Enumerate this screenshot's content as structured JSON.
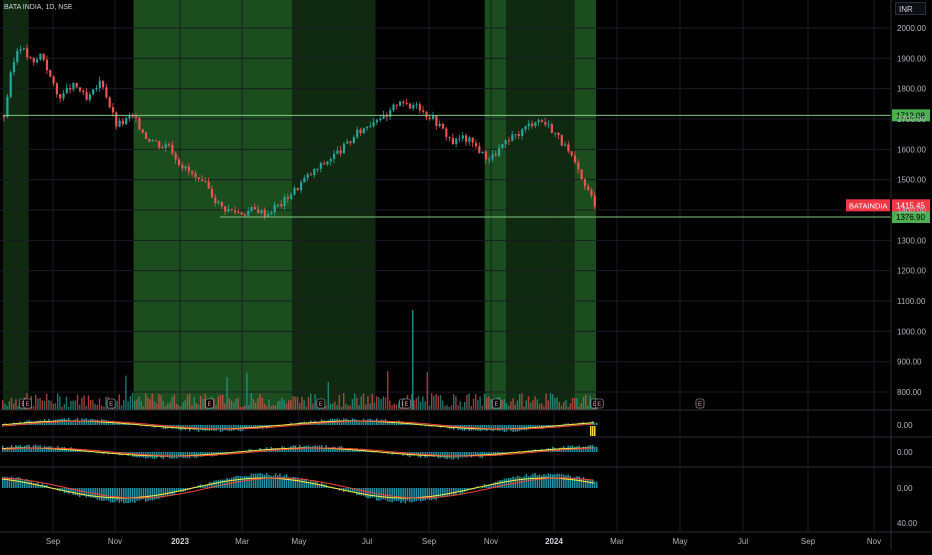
{
  "header": {
    "symbol": "BATA INDIA, 1D, NSE",
    "currency": "INR"
  },
  "chart_data": {
    "type": "candlestick",
    "price_axis": {
      "ticks": [
        "2000.00",
        "1900.00",
        "1800.00",
        "1700.00",
        "1600.00",
        "1500.00",
        "1400.00",
        "1300.00",
        "1200.00",
        "1100.00",
        "1000.00",
        "900.00",
        "800.00"
      ],
      "ylim": [
        770,
        2050
      ]
    },
    "time_axis": {
      "labels": [
        "Sep",
        "Nov",
        "2023",
        "Mar",
        "May",
        "Jul",
        "Sep",
        "Nov",
        "2024",
        "Mar",
        "May",
        "Jul",
        "Sep",
        "Nov"
      ]
    },
    "price_path": [
      [
        "2022-08-01",
        1710
      ],
      [
        "2022-08-08",
        1860
      ],
      [
        "2022-08-15",
        1950
      ],
      [
        "2022-08-22",
        1910
      ],
      [
        "2022-08-29",
        1880
      ],
      [
        "2022-09-05",
        1920
      ],
      [
        "2022-09-12",
        1850
      ],
      [
        "2022-09-19",
        1780
      ],
      [
        "2022-09-26",
        1780
      ],
      [
        "2022-10-03",
        1810
      ],
      [
        "2022-10-10",
        1800
      ],
      [
        "2022-10-17",
        1760
      ],
      [
        "2022-10-24",
        1790
      ],
      [
        "2022-10-31",
        1830
      ],
      [
        "2022-11-07",
        1750
      ],
      [
        "2022-11-14",
        1680
      ],
      [
        "2022-11-21",
        1690
      ],
      [
        "2022-11-28",
        1710
      ],
      [
        "2022-12-05",
        1680
      ],
      [
        "2022-12-12",
        1640
      ],
      [
        "2022-12-19",
        1630
      ],
      [
        "2022-12-26",
        1610
      ],
      [
        "2023-01-02",
        1620
      ],
      [
        "2023-01-09",
        1570
      ],
      [
        "2023-01-16",
        1540
      ],
      [
        "2023-01-23",
        1520
      ],
      [
        "2023-01-30",
        1490
      ],
      [
        "2023-02-06",
        1480
      ],
      [
        "2023-02-13",
        1440
      ],
      [
        "2023-02-20",
        1410
      ],
      [
        "2023-02-27",
        1400
      ],
      [
        "2023-03-06",
        1395
      ],
      [
        "2023-03-13",
        1390
      ],
      [
        "2023-03-20",
        1400
      ],
      [
        "2023-03-27",
        1400
      ],
      [
        "2023-04-03",
        1385
      ],
      [
        "2023-04-10",
        1410
      ],
      [
        "2023-04-17",
        1420
      ],
      [
        "2023-04-24",
        1450
      ],
      [
        "2023-05-01",
        1470
      ],
      [
        "2023-05-08",
        1500
      ],
      [
        "2023-05-15",
        1520
      ],
      [
        "2023-05-22",
        1540
      ],
      [
        "2023-05-29",
        1560
      ],
      [
        "2023-06-05",
        1580
      ],
      [
        "2023-06-12",
        1600
      ],
      [
        "2023-06-19",
        1620
      ],
      [
        "2023-06-26",
        1650
      ],
      [
        "2023-07-03",
        1670
      ],
      [
        "2023-07-10",
        1690
      ],
      [
        "2023-07-17",
        1710
      ],
      [
        "2023-07-24",
        1700
      ],
      [
        "2023-07-31",
        1740
      ],
      [
        "2023-08-07",
        1770
      ],
      [
        "2023-08-14",
        1730
      ],
      [
        "2023-08-21",
        1760
      ],
      [
        "2023-08-28",
        1720
      ],
      [
        "2023-09-04",
        1710
      ],
      [
        "2023-09-11",
        1680
      ],
      [
        "2023-09-18",
        1650
      ],
      [
        "2023-09-25",
        1620
      ],
      [
        "2023-10-02",
        1640
      ],
      [
        "2023-10-09",
        1630
      ],
      [
        "2023-10-16",
        1610
      ],
      [
        "2023-10-23",
        1580
      ],
      [
        "2023-10-30",
        1570
      ],
      [
        "2023-11-06",
        1600
      ],
      [
        "2023-11-13",
        1620
      ],
      [
        "2023-11-20",
        1640
      ],
      [
        "2023-11-27",
        1660
      ],
      [
        "2023-12-04",
        1680
      ],
      [
        "2023-12-11",
        1700
      ],
      [
        "2023-12-18",
        1690
      ],
      [
        "2023-12-25",
        1670
      ],
      [
        "2024-01-01",
        1640
      ],
      [
        "2024-01-08",
        1600
      ],
      [
        "2024-01-15",
        1560
      ],
      [
        "2024-01-22",
        1500
      ],
      [
        "2024-01-29",
        1460
      ],
      [
        "2024-02-05",
        1415
      ]
    ],
    "green_zones": [
      [
        "2022-08-01",
        "2022-08-25",
        "dark"
      ],
      [
        "2022-12-01",
        "2023-04-28",
        "light"
      ],
      [
        "2023-04-28",
        "2023-07-15",
        "dark"
      ],
      [
        "2023-10-25",
        "2023-11-14",
        "light"
      ],
      [
        "2023-11-14",
        "2024-01-17",
        "dark"
      ],
      [
        "2024-01-17",
        "2024-02-06",
        "light"
      ]
    ],
    "horizontal_lines": [
      {
        "value": 1712.08,
        "label": "1712.08",
        "from": "2022-08-01",
        "color": "#81c784"
      },
      {
        "value": 1376.9,
        "label": "1376.90",
        "from": "2023-02-20",
        "color": "#81c784"
      }
    ],
    "last_price": {
      "symbol": "BATAINDIA",
      "value": "1415.45",
      "color": "#f23645"
    },
    "earnings_markers": [
      [
        "2022-08-20",
        "E"
      ],
      [
        "2022-08-24",
        "E"
      ],
      [
        "2022-11-10",
        "E"
      ],
      [
        "2023-02-10",
        "E"
      ],
      [
        "2023-05-25",
        "E"
      ],
      [
        "2023-08-10",
        "E"
      ],
      [
        "2023-08-13",
        "E"
      ],
      [
        "2023-11-05",
        "E"
      ],
      [
        "2024-02-05",
        "E"
      ],
      [
        "2024-02-09",
        "E"
      ],
      [
        "2024-05-25",
        "E"
      ]
    ],
    "indicator_panels": [
      {
        "zero_label": "0.00"
      },
      {
        "zero_label": "0.00"
      },
      {
        "zero_label": "0.00",
        "extra_label": "40.00"
      }
    ]
  }
}
